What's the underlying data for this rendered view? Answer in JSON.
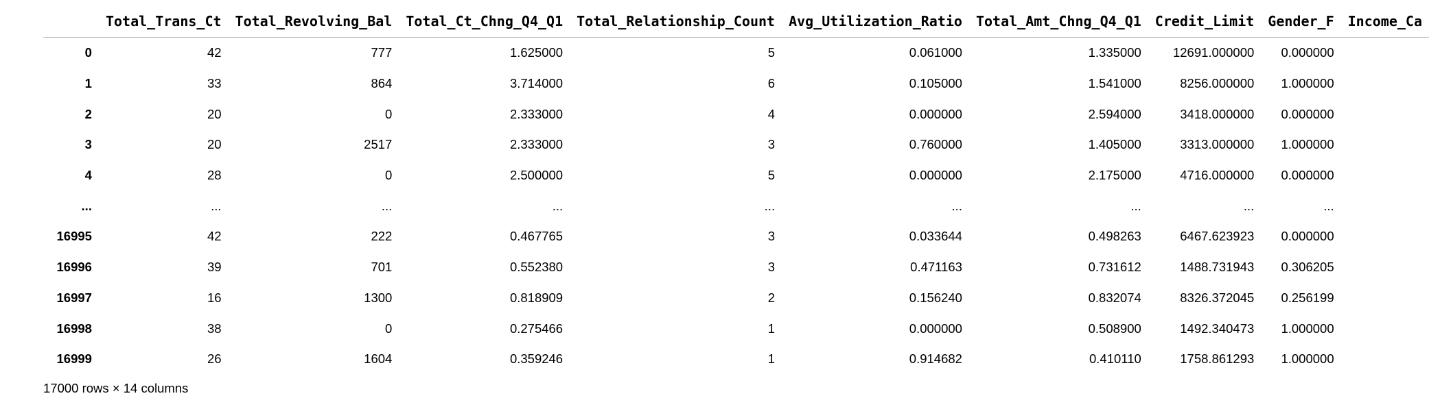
{
  "dataframe": {
    "columns": [
      "Total_Trans_Ct",
      "Total_Revolving_Bal",
      "Total_Ct_Chng_Q4_Q1",
      "Total_Relationship_Count",
      "Avg_Utilization_Ratio",
      "Total_Amt_Chng_Q4_Q1",
      "Credit_Limit",
      "Gender_F",
      "Income_Ca"
    ],
    "index": [
      "0",
      "1",
      "2",
      "3",
      "4",
      "...",
      "16995",
      "16996",
      "16997",
      "16998",
      "16999"
    ],
    "rows": [
      [
        "42",
        "777",
        "1.625000",
        "5",
        "0.061000",
        "1.335000",
        "12691.000000",
        "0.000000",
        ""
      ],
      [
        "33",
        "864",
        "3.714000",
        "6",
        "0.105000",
        "1.541000",
        "8256.000000",
        "1.000000",
        ""
      ],
      [
        "20",
        "0",
        "2.333000",
        "4",
        "0.000000",
        "2.594000",
        "3418.000000",
        "0.000000",
        ""
      ],
      [
        "20",
        "2517",
        "2.333000",
        "3",
        "0.760000",
        "1.405000",
        "3313.000000",
        "1.000000",
        ""
      ],
      [
        "28",
        "0",
        "2.500000",
        "5",
        "0.000000",
        "2.175000",
        "4716.000000",
        "0.000000",
        ""
      ],
      [
        "...",
        "...",
        "...",
        "...",
        "...",
        "...",
        "...",
        "...",
        ""
      ],
      [
        "42",
        "222",
        "0.467765",
        "3",
        "0.033644",
        "0.498263",
        "6467.623923",
        "0.000000",
        ""
      ],
      [
        "39",
        "701",
        "0.552380",
        "3",
        "0.471163",
        "0.731612",
        "1488.731943",
        "0.306205",
        ""
      ],
      [
        "16",
        "1300",
        "0.818909",
        "2",
        "0.156240",
        "0.832074",
        "8326.372045",
        "0.256199",
        ""
      ],
      [
        "38",
        "0",
        "0.275466",
        "1",
        "0.000000",
        "0.508900",
        "1492.340473",
        "1.000000",
        ""
      ],
      [
        "26",
        "1604",
        "0.359246",
        "1",
        "0.914682",
        "0.410110",
        "1758.861293",
        "1.000000",
        ""
      ]
    ],
    "summary": "17000 rows × 14 columns"
  }
}
